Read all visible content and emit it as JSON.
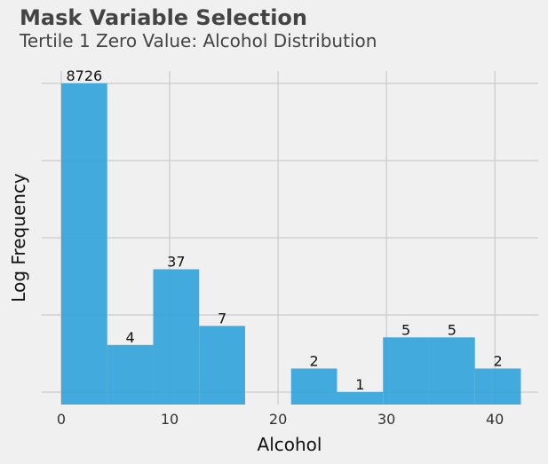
{
  "title": "Mask Variable Selection",
  "subtitle": "Tertile 1 Zero Value: Alcohol Distribution",
  "chart_data": {
    "type": "bar",
    "xlabel": "Alcohol",
    "ylabel": "Log Frequency",
    "xlim": [
      -1.8,
      44
    ],
    "ylog": true,
    "x_ticks": [
      "0",
      "10",
      "20",
      "30",
      "40"
    ],
    "x_tick_values": [
      0,
      10,
      20,
      30,
      40
    ],
    "bin_edges": [
      0,
      4.24,
      8.48,
      12.72,
      16.96,
      21.2,
      25.44,
      29.68,
      33.92,
      38.16,
      42.4
    ],
    "counts": [
      8726,
      4,
      37,
      7,
      0,
      2,
      1,
      5,
      5,
      2
    ],
    "count_labels": [
      "8726",
      "4",
      "37",
      "7",
      "",
      "2",
      "1",
      "5",
      "5",
      "2"
    ],
    "bar_color": "#30a2da",
    "grid": true
  }
}
